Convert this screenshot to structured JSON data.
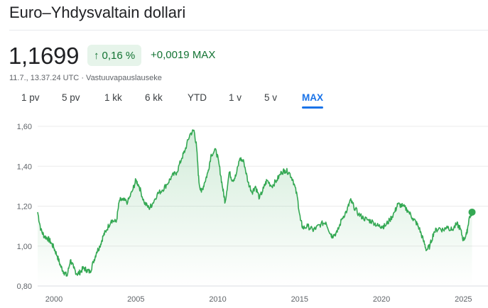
{
  "header": {
    "title": "Euro–Yhdysvaltain dollari"
  },
  "quote": {
    "price": "1,1699",
    "percent_change": "0,16 %",
    "change_arrow_icon": "arrow-up-icon",
    "abs_change": "+0,0019",
    "period_label": "MAX",
    "timestamp": "11.7., 13.37.24 UTC",
    "separator": "·",
    "disclaimer": "Vastuuvapauslauseke",
    "positive_color": "#137333",
    "badge_bg": "#e6f4ea"
  },
  "tabs": [
    {
      "label": "1 pv",
      "active": false
    },
    {
      "label": "5 pv",
      "active": false
    },
    {
      "label": "1 kk",
      "active": false
    },
    {
      "label": "6 kk",
      "active": false
    },
    {
      "label": "YTD",
      "active": false
    },
    {
      "label": "1 v",
      "active": false
    },
    {
      "label": "5 v",
      "active": false
    },
    {
      "label": "MAX",
      "active": true
    }
  ],
  "chart_data": {
    "type": "area",
    "title": "",
    "xlabel": "",
    "ylabel": "",
    "line_color": "#34a853",
    "accent_color": "#1a73e8",
    "grid": true,
    "ylim": [
      0.8,
      1.6
    ],
    "xlim": [
      1999.0,
      2025.55
    ],
    "y_ticks": [
      0.8,
      1.0,
      1.2,
      1.4,
      1.6
    ],
    "y_tick_labels": [
      "0,80",
      "1,00",
      "1,20",
      "1,40",
      "1,60"
    ],
    "x_ticks": [
      2000,
      2005,
      2010,
      2015,
      2020,
      2025
    ],
    "x_tick_labels": [
      "2000",
      "2005",
      "2010",
      "2015",
      "2020",
      "2025"
    ],
    "series": [
      {
        "x": [
          1999.0,
          1999.2,
          1999.4,
          1999.6,
          1999.8,
          2000.0,
          2000.2,
          2000.4,
          2000.6,
          2000.8,
          2001.0,
          2001.2,
          2001.4,
          2001.6,
          2001.8,
          2002.0,
          2002.2,
          2002.4,
          2002.6,
          2002.8,
          2003.0,
          2003.2,
          2003.5,
          2003.8,
          2004.0,
          2004.2,
          2004.5,
          2004.8,
          2005.0,
          2005.2,
          2005.5,
          2005.8,
          2006.0,
          2006.3,
          2006.6,
          2006.9,
          2007.2,
          2007.5,
          2007.8,
          2008.0,
          2008.3,
          2008.55,
          2008.7,
          2008.85,
          2009.0,
          2009.2,
          2009.4,
          2009.6,
          2009.9,
          2010.1,
          2010.3,
          2010.45,
          2010.7,
          2010.9,
          2011.1,
          2011.35,
          2011.6,
          2011.85,
          2012.1,
          2012.3,
          2012.55,
          2012.8,
          2013.0,
          2013.3,
          2013.6,
          2013.9,
          2014.1,
          2014.35,
          2014.6,
          2014.85,
          2015.05,
          2015.2,
          2015.5,
          2015.8,
          2016.0,
          2016.3,
          2016.6,
          2016.9,
          2017.0,
          2017.3,
          2017.6,
          2017.9,
          2018.1,
          2018.3,
          2018.6,
          2018.9,
          2019.2,
          2019.5,
          2019.8,
          2020.0,
          2020.2,
          2020.5,
          2020.8,
          2021.0,
          2021.3,
          2021.6,
          2021.9,
          2022.1,
          2022.3,
          2022.55,
          2022.75,
          2022.95,
          2023.2,
          2023.5,
          2023.8,
          2024.0,
          2024.3,
          2024.6,
          2024.8,
          2025.0,
          2025.2,
          2025.35,
          2025.53
        ],
        "values": [
          1.17,
          1.08,
          1.05,
          1.04,
          1.02,
          0.99,
          0.95,
          0.9,
          0.87,
          0.85,
          0.93,
          0.89,
          0.86,
          0.87,
          0.89,
          0.88,
          0.87,
          0.92,
          0.97,
          1.0,
          1.05,
          1.08,
          1.13,
          1.12,
          1.23,
          1.23,
          1.22,
          1.28,
          1.33,
          1.3,
          1.22,
          1.19,
          1.21,
          1.26,
          1.28,
          1.31,
          1.35,
          1.37,
          1.44,
          1.48,
          1.56,
          1.58,
          1.5,
          1.32,
          1.27,
          1.32,
          1.37,
          1.46,
          1.48,
          1.4,
          1.29,
          1.22,
          1.37,
          1.33,
          1.35,
          1.44,
          1.42,
          1.32,
          1.27,
          1.3,
          1.24,
          1.29,
          1.33,
          1.3,
          1.33,
          1.37,
          1.38,
          1.37,
          1.33,
          1.25,
          1.13,
          1.09,
          1.1,
          1.08,
          1.09,
          1.11,
          1.12,
          1.06,
          1.05,
          1.07,
          1.14,
          1.18,
          1.23,
          1.2,
          1.16,
          1.14,
          1.13,
          1.12,
          1.1,
          1.1,
          1.1,
          1.13,
          1.17,
          1.21,
          1.2,
          1.18,
          1.14,
          1.12,
          1.09,
          1.03,
          0.98,
          1.0,
          1.07,
          1.09,
          1.08,
          1.1,
          1.08,
          1.11,
          1.09,
          1.03,
          1.06,
          1.14,
          1.17
        ]
      }
    ]
  }
}
